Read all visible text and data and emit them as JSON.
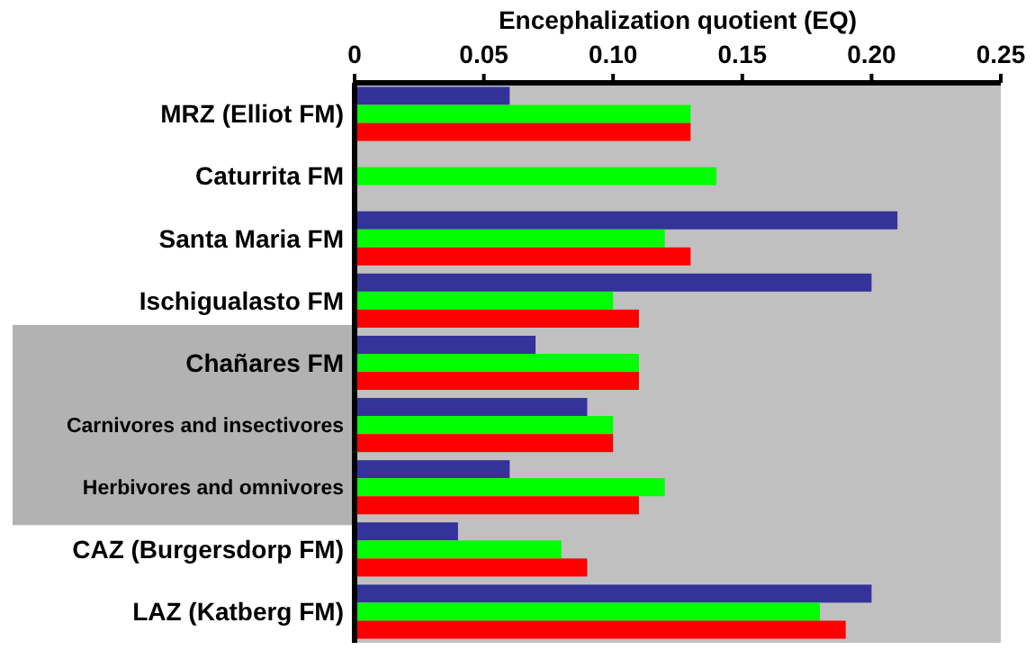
{
  "chart_data": {
    "type": "bar",
    "orientation": "horizontal",
    "xlabel": "Encephalization quotient (EQ)",
    "categories": [
      "MRZ (Elliot FM)",
      "Caturrita FM",
      "Santa Maria FM",
      "Ischigualasto FM",
      "Chañares FM",
      "Carnivores and insectivores",
      "Herbivores and omnivores",
      "CAZ (Burgersdorp FM)",
      "LAZ (Katberg FM)"
    ],
    "series": [
      {
        "color": "#333399",
        "values": [
          0.06,
          null,
          0.21,
          0.2,
          0.07,
          0.09,
          0.06,
          0.04,
          0.2
        ]
      },
      {
        "color": "#00ff00",
        "values": [
          0.13,
          0.14,
          0.12,
          0.1,
          0.11,
          0.1,
          0.12,
          0.08,
          0.18
        ]
      },
      {
        "color": "#ff0000",
        "values": [
          0.13,
          null,
          0.13,
          0.11,
          0.11,
          0.1,
          0.11,
          0.09,
          0.19
        ]
      }
    ],
    "xlim": [
      0,
      0.25
    ],
    "xticks": [
      0,
      0.05,
      {
        "value": 0.1,
        "label": "0.10"
      },
      0.15,
      {
        "value": 0.2,
        "label": "0.20"
      },
      0.25
    ],
    "grid": false
  }
}
